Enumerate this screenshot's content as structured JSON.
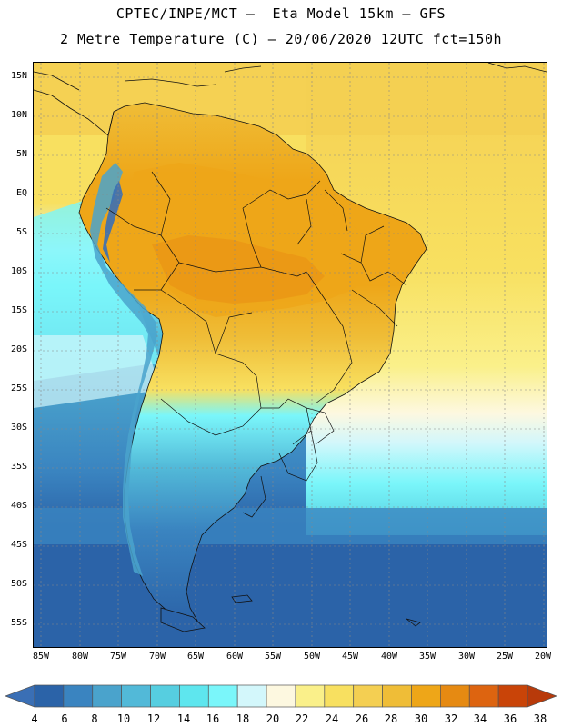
{
  "header": {
    "title_line1": "CPTEC/INPE/MCT –  Eta Model 15km – GFS",
    "title_line2": "2 Metre Temperature (C) – 20/06/2020 12UTC fct=150h"
  },
  "map": {
    "variable": "2 Metre Temperature",
    "units": "C",
    "lat_labels": [
      "15N",
      "10N",
      "5N",
      "EQ",
      "5S",
      "10S",
      "15S",
      "20S",
      "25S",
      "30S",
      "35S",
      "40S",
      "45S",
      "50S",
      "55S"
    ],
    "lon_labels": [
      "85W",
      "80W",
      "75W",
      "70W",
      "65W",
      "60W",
      "55W",
      "50W",
      "45W",
      "40W",
      "35W",
      "30W",
      "25W",
      "20W"
    ],
    "lat_range": [
      16,
      -58
    ],
    "lon_range": [
      -86,
      -19.5
    ]
  },
  "colorbar": {
    "ticks": [
      "4",
      "6",
      "8",
      "10",
      "12",
      "14",
      "16",
      "18",
      "20",
      "22",
      "24",
      "26",
      "28",
      "30",
      "32",
      "34",
      "36",
      "38"
    ],
    "colors": [
      "#3a6fb5",
      "#2b63a8",
      "#3a84c0",
      "#4aa3cc",
      "#52b9d8",
      "#56cee0",
      "#5ee6ee",
      "#7af6fa",
      "#d3f7fb",
      "#fdf8e0",
      "#faf08a",
      "#f8e060",
      "#f4cf52",
      "#efbd37",
      "#eea618",
      "#e68a12",
      "#dd6410",
      "#c94408",
      "#b83a0a"
    ]
  }
}
